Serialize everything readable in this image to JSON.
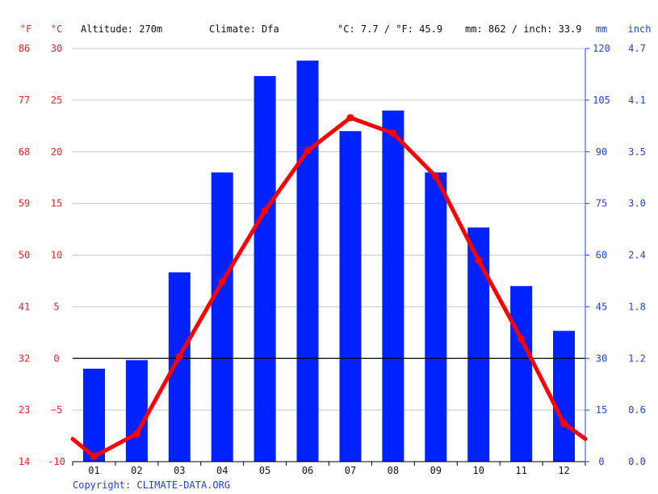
{
  "chart_data": {
    "type": "bar",
    "header": {
      "unit_f": "°F",
      "unit_c": "°C",
      "altitude": "Altitude: 270m",
      "climate": "Climate: Dfa",
      "temp_avg": "°C: 7.7 / °F: 45.9",
      "precip_total": "mm: 862 / inch: 33.9",
      "unit_mm": "mm",
      "unit_inch": "inch"
    },
    "categories": [
      "01",
      "02",
      "03",
      "04",
      "05",
      "06",
      "07",
      "08",
      "09",
      "10",
      "11",
      "12"
    ],
    "series": [
      {
        "axis": "right",
        "chart": "bar",
        "color": "#0022ff",
        "values": [
          27,
          29.5,
          55,
          84,
          112,
          116.5,
          96,
          102,
          84,
          68,
          51,
          38
        ]
      },
      {
        "axis": "left",
        "chart": "line",
        "color": "#ff0000",
        "values": [
          -9.5,
          -7.3,
          0.2,
          7.4,
          14.3,
          20.1,
          23.3,
          21.8,
          17.6,
          9.5,
          1.9,
          -6.3
        ],
        "edge_start": -7.8,
        "edge_end": -7.8
      }
    ],
    "axes": {
      "celsius": {
        "range": [
          -10,
          30
        ],
        "ticks": [
          "-10",
          "−5",
          "0",
          "5",
          "10",
          "15",
          "20",
          "25",
          "30"
        ],
        "tick_values": [
          -10,
          -5,
          0,
          5,
          10,
          15,
          20,
          25,
          30
        ]
      },
      "fahrenheit": {
        "ticks": [
          "14",
          "23",
          "32",
          "41",
          "50",
          "59",
          "68",
          "77",
          "86"
        ]
      },
      "mm": {
        "range": [
          0,
          120
        ],
        "ticks": [
          "0",
          "15",
          "30",
          "45",
          "60",
          "75",
          "90",
          "105",
          "120"
        ],
        "tick_values": [
          0,
          15,
          30,
          45,
          60,
          75,
          90,
          105,
          120
        ]
      },
      "inch": {
        "ticks": [
          "0.0",
          "0.6",
          "1.2",
          "1.8",
          "2.4",
          "3.0",
          "3.5",
          "4.1",
          "4.7"
        ]
      }
    },
    "grid": true,
    "zero_line": true,
    "copyright": "Copyright: CLIMATE-DATA.ORG",
    "colors": {
      "temperature": "#ff0000",
      "temperature_axis": "#ee2222",
      "precipitation": "#0022ff",
      "precipitation_axis": "#2244dd",
      "text": "#111111",
      "grid": "#c8c8c8",
      "axis": "#000000"
    }
  }
}
